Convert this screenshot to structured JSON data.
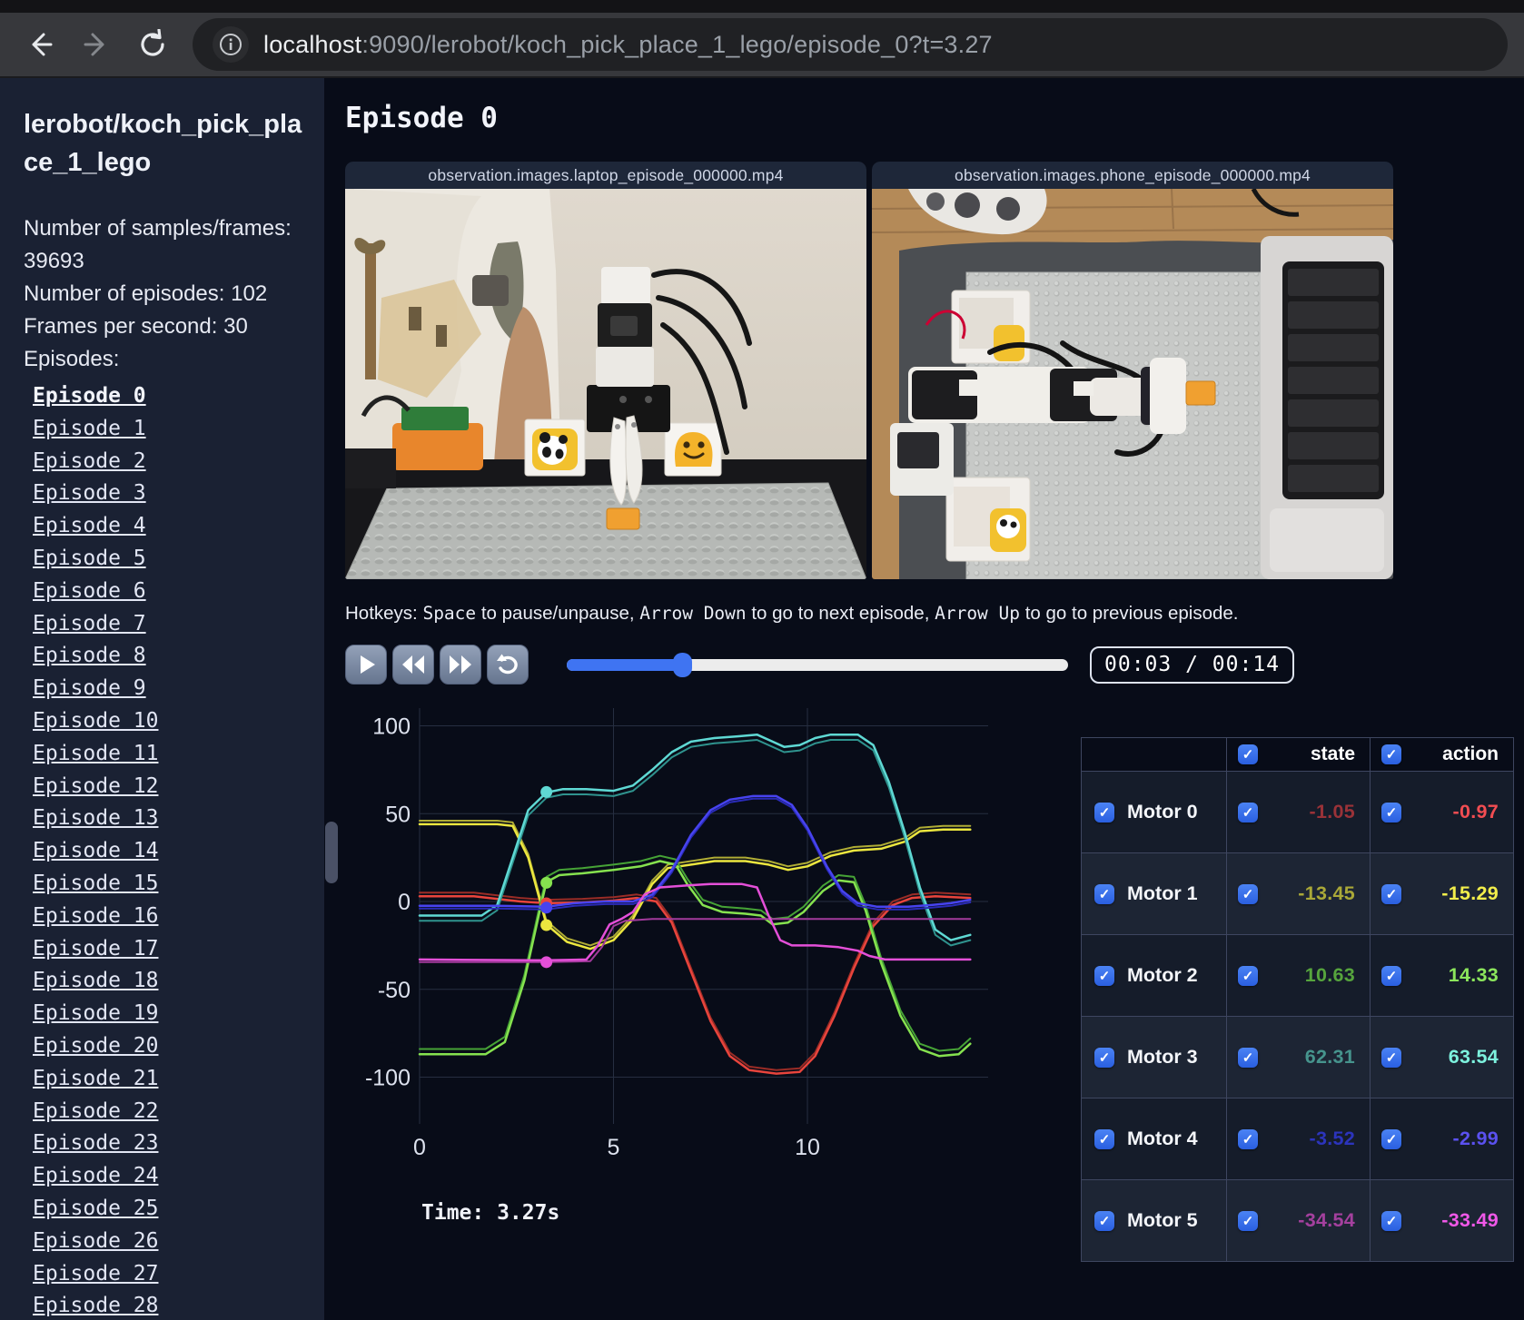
{
  "browser": {
    "url_host": "localhost",
    "url_rest": ":9090/lerobot/koch_pick_place_1_lego/episode_0?t=3.27"
  },
  "sidebar": {
    "title": "lerobot/koch_pick_place_1_lego",
    "stats": [
      "Number of samples/frames: 39693",
      "Number of episodes: 102",
      "Frames per second: 30"
    ],
    "episodes_label": "Episodes:",
    "active_episode": "Episode 0",
    "episodes": [
      "Episode 0",
      "Episode 1",
      "Episode 2",
      "Episode 3",
      "Episode 4",
      "Episode 5",
      "Episode 6",
      "Episode 7",
      "Episode 8",
      "Episode 9",
      "Episode 10",
      "Episode 11",
      "Episode 12",
      "Episode 13",
      "Episode 14",
      "Episode 15",
      "Episode 16",
      "Episode 17",
      "Episode 18",
      "Episode 19",
      "Episode 20",
      "Episode 21",
      "Episode 22",
      "Episode 23",
      "Episode 24",
      "Episode 25",
      "Episode 26",
      "Episode 27",
      "Episode 28"
    ]
  },
  "main": {
    "heading": "Episode 0",
    "videos": [
      {
        "title": "observation.images.laptop_episode_000000.mp4"
      },
      {
        "title": "observation.images.phone_episode_000000.mp4"
      }
    ],
    "hotkeys": {
      "prefix": "Hotkeys: ",
      "key1": "Space",
      "mid1": " to pause/unpause, ",
      "key2": "Arrow Down",
      "mid2": " to go to next episode, ",
      "key3": "Arrow Up",
      "suffix": " to go to previous episode."
    },
    "controls": {
      "time": "00:03 / 00:14",
      "progress_pct": 23
    }
  },
  "chart_data": {
    "type": "line",
    "title": "",
    "xlabel": "",
    "ylabel": "",
    "x_ticks": [
      0,
      5,
      10
    ],
    "y_ticks": [
      100,
      50,
      0,
      -50,
      -100
    ],
    "xlim": [
      0,
      14.7
    ],
    "ylim": [
      -110,
      110
    ],
    "grid": true,
    "legend": "none",
    "current_time": 3.27,
    "time_label": "Time: 3.27s",
    "series": [
      {
        "name": "Motor 0",
        "color_action": "#e8443c",
        "color_state": "#9a2c26",
        "state_offset": 2,
        "dot": -1.05,
        "points": [
          [
            0,
            3
          ],
          [
            1.4,
            3
          ],
          [
            2,
            1.5
          ],
          [
            2.6,
            0
          ],
          [
            3.27,
            -1
          ],
          [
            4.2,
            -0.5
          ],
          [
            5,
            0.5
          ],
          [
            5.6,
            2
          ],
          [
            6.1,
            0
          ],
          [
            6.5,
            -12
          ],
          [
            7,
            -40
          ],
          [
            7.5,
            -68
          ],
          [
            8,
            -88
          ],
          [
            8.5,
            -96
          ],
          [
            9.2,
            -98
          ],
          [
            9.8,
            -97
          ],
          [
            10.2,
            -88
          ],
          [
            10.7,
            -65
          ],
          [
            11.2,
            -38
          ],
          [
            11.7,
            -14
          ],
          [
            12.2,
            -2
          ],
          [
            12.7,
            2
          ],
          [
            13.3,
            3
          ],
          [
            14.2,
            2
          ]
        ]
      },
      {
        "name": "Motor 1",
        "color_action": "#ece73f",
        "color_state": "#b0ad35",
        "state_offset": 2,
        "dot": -13.45,
        "points": [
          [
            0,
            44
          ],
          [
            2,
            44
          ],
          [
            2.4,
            43
          ],
          [
            2.8,
            25
          ],
          [
            3.27,
            -13
          ],
          [
            3.8,
            -23
          ],
          [
            4.4,
            -27
          ],
          [
            5,
            -22
          ],
          [
            5.5,
            -10
          ],
          [
            6,
            10
          ],
          [
            6.4,
            19
          ],
          [
            7,
            21
          ],
          [
            7.6,
            23
          ],
          [
            8.4,
            23
          ],
          [
            9,
            21
          ],
          [
            9.5,
            18
          ],
          [
            10,
            20
          ],
          [
            10.6,
            26
          ],
          [
            11.2,
            29
          ],
          [
            11.9,
            30
          ],
          [
            12.5,
            34
          ],
          [
            12.9,
            40
          ],
          [
            13.5,
            41
          ],
          [
            14.2,
            41
          ]
        ]
      },
      {
        "name": "Motor 2",
        "color_action": "#86e24f",
        "color_state": "#46a336",
        "state_offset": 3,
        "dot": 10.63,
        "points": [
          [
            0,
            -87
          ],
          [
            1.7,
            -87
          ],
          [
            2.2,
            -80
          ],
          [
            2.7,
            -45
          ],
          [
            3.1,
            -5
          ],
          [
            3.27,
            11
          ],
          [
            3.6,
            15
          ],
          [
            4.2,
            16
          ],
          [
            5,
            18
          ],
          [
            5.7,
            20
          ],
          [
            6.2,
            23
          ],
          [
            6.6,
            21
          ],
          [
            6.9,
            10
          ],
          [
            7.3,
            -2
          ],
          [
            7.8,
            -6
          ],
          [
            8.4,
            -7
          ],
          [
            8.8,
            -8
          ],
          [
            9.1,
            -13
          ],
          [
            9.5,
            -12
          ],
          [
            9.9,
            -6
          ],
          [
            10.4,
            6
          ],
          [
            10.8,
            12
          ],
          [
            11.2,
            11
          ],
          [
            11.5,
            -5
          ],
          [
            11.9,
            -35
          ],
          [
            12.4,
            -65
          ],
          [
            12.9,
            -84
          ],
          [
            13.4,
            -88
          ],
          [
            13.9,
            -87
          ],
          [
            14.2,
            -81
          ]
        ]
      },
      {
        "name": "Motor 3",
        "color_action": "#5fd9d4",
        "color_state": "#2f938e",
        "state_offset": -3,
        "dot": 62.31,
        "points": [
          [
            0,
            -8
          ],
          [
            1.6,
            -8
          ],
          [
            2,
            -2
          ],
          [
            2.4,
            25
          ],
          [
            2.8,
            52
          ],
          [
            3.27,
            62
          ],
          [
            3.7,
            64
          ],
          [
            4.3,
            64
          ],
          [
            5,
            63
          ],
          [
            5.5,
            66
          ],
          [
            6,
            75
          ],
          [
            6.5,
            85
          ],
          [
            7,
            91
          ],
          [
            7.6,
            93
          ],
          [
            8.2,
            94
          ],
          [
            8.7,
            95
          ],
          [
            9.1,
            91
          ],
          [
            9.4,
            88
          ],
          [
            9.8,
            89
          ],
          [
            10.2,
            93
          ],
          [
            10.6,
            95
          ],
          [
            11.3,
            95
          ],
          [
            11.7,
            89
          ],
          [
            12.1,
            68
          ],
          [
            12.5,
            40
          ],
          [
            12.9,
            8
          ],
          [
            13.3,
            -16
          ],
          [
            13.7,
            -22
          ],
          [
            14.2,
            -19
          ]
        ]
      },
      {
        "name": "Motor 4",
        "color_action": "#4743ef",
        "color_state": "#2a2bb8",
        "state_offset": -1.5,
        "dot": -3.52,
        "points": [
          [
            0,
            -2.5
          ],
          [
            2,
            -2.5
          ],
          [
            3.27,
            -3
          ],
          [
            4,
            -1
          ],
          [
            4.8,
            0
          ],
          [
            5.5,
            0
          ],
          [
            6,
            4
          ],
          [
            6.5,
            18
          ],
          [
            7,
            38
          ],
          [
            7.5,
            52
          ],
          [
            8,
            58
          ],
          [
            8.6,
            60
          ],
          [
            9.2,
            60
          ],
          [
            9.6,
            55
          ],
          [
            10,
            42
          ],
          [
            10.5,
            20
          ],
          [
            10.9,
            6
          ],
          [
            11.3,
            -1
          ],
          [
            11.8,
            -3
          ],
          [
            12.6,
            -3
          ],
          [
            13.2,
            -2
          ],
          [
            13.7,
            -1
          ],
          [
            14.2,
            1
          ]
        ]
      },
      {
        "name": "Motor 5",
        "color_action": "#e44fd8",
        "color_state": "#a23a9c",
        "state_offset": -1,
        "dot": -34.54,
        "points": [
          [
            0,
            -33
          ],
          [
            3,
            -33.5
          ],
          [
            3.27,
            -33.5
          ],
          [
            4.3,
            -33
          ],
          [
            4.6,
            -25
          ],
          [
            4.9,
            -13
          ],
          [
            5.2,
            -10
          ],
          [
            5.5,
            -6
          ],
          [
            5.8,
            4
          ],
          [
            6.2,
            8
          ],
          [
            6.8,
            9
          ],
          [
            7.5,
            10
          ],
          [
            8.3,
            10
          ],
          [
            8.7,
            8
          ],
          [
            9,
            -8
          ],
          [
            9.3,
            -22
          ],
          [
            9.6,
            -25
          ],
          [
            10.2,
            -25
          ],
          [
            10.8,
            -26
          ],
          [
            11.3,
            -28
          ],
          [
            11.6,
            -31
          ],
          [
            12,
            -33
          ],
          [
            13,
            -33
          ],
          [
            14.2,
            -33
          ]
        ],
        "state_points": [
          [
            0,
            -34.5
          ],
          [
            3.27,
            -34.5
          ],
          [
            4.4,
            -34
          ],
          [
            4.7,
            -26
          ],
          [
            5,
            -14
          ],
          [
            5.3,
            -11
          ],
          [
            6,
            -10
          ],
          [
            14.2,
            -10
          ]
        ]
      }
    ]
  },
  "table": {
    "columns": [
      "state",
      "action"
    ],
    "rows": [
      {
        "label": "Motor 0",
        "state": "-1.05",
        "action": "-0.97",
        "state_color": "#9a3238",
        "action_color": "#f24d52"
      },
      {
        "label": "Motor 1",
        "state": "-13.45",
        "action": "-15.29",
        "state_color": "#aaa838",
        "action_color": "#f2ee4b"
      },
      {
        "label": "Motor 2",
        "state": "10.63",
        "action": "14.33",
        "state_color": "#56a43d",
        "action_color": "#8ce65c"
      },
      {
        "label": "Motor 3",
        "state": "62.31",
        "action": "63.54",
        "state_color": "#46948d",
        "action_color": "#7df2de"
      },
      {
        "label": "Motor 4",
        "state": "-3.52",
        "action": "-2.99",
        "state_color": "#2c34bc",
        "action_color": "#5b51f0"
      },
      {
        "label": "Motor 5",
        "state": "-34.54",
        "action": "-33.49",
        "state_color": "#a4409e",
        "action_color": "#f058e8"
      }
    ]
  }
}
